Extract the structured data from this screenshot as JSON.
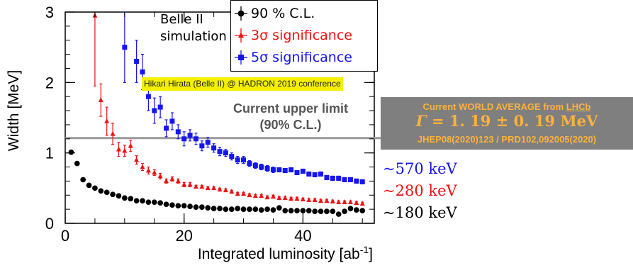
{
  "chart_data": {
    "type": "scatter",
    "xlabel": "Integrated luminosity [ab",
    "xlabel_sup": "-1",
    "xlabel_close": "]",
    "ylabel": "Width [MeV]",
    "xlim": [
      0,
      52
    ],
    "ylim": [
      0,
      3
    ],
    "xticks": [
      "0",
      "20",
      "40"
    ],
    "yticks": [
      "0",
      "1",
      "2",
      "3"
    ],
    "reference_line": {
      "y": 1.21,
      "color": "#999999"
    },
    "series": [
      {
        "name": "90 % C.L.",
        "color": "#000000",
        "marker": "circle",
        "points": [
          [
            1,
            1.01,
            0.02
          ],
          [
            2,
            0.85,
            0.02
          ],
          [
            3,
            0.62,
            0
          ],
          [
            4,
            0.54,
            0
          ],
          [
            5,
            0.5,
            0
          ],
          [
            6,
            0.46,
            0
          ],
          [
            7,
            0.44,
            0
          ],
          [
            8,
            0.41,
            0
          ],
          [
            9,
            0.39,
            0
          ],
          [
            10,
            0.36,
            0
          ],
          [
            11,
            0.35,
            0
          ],
          [
            12,
            0.32,
            0
          ],
          [
            13,
            0.32,
            0
          ],
          [
            14,
            0.3,
            0
          ],
          [
            15,
            0.3,
            0
          ],
          [
            16,
            0.29,
            0
          ],
          [
            17,
            0.27,
            0
          ],
          [
            18,
            0.26,
            0
          ],
          [
            19,
            0.25,
            0
          ],
          [
            20,
            0.25,
            0
          ],
          [
            21,
            0.24,
            0
          ],
          [
            22,
            0.23,
            0
          ],
          [
            23,
            0.23,
            0
          ],
          [
            24,
            0.22,
            0
          ],
          [
            25,
            0.21,
            0
          ],
          [
            26,
            0.21,
            0
          ],
          [
            27,
            0.2,
            0
          ],
          [
            28,
            0.2,
            0
          ],
          [
            29,
            0.21,
            0
          ],
          [
            30,
            0.2,
            0
          ],
          [
            31,
            0.2,
            0
          ],
          [
            32,
            0.2,
            0
          ],
          [
            33,
            0.19,
            0
          ],
          [
            34,
            0.2,
            0
          ],
          [
            35,
            0.19,
            0
          ],
          [
            36,
            0.22,
            0
          ],
          [
            37,
            0.18,
            0
          ],
          [
            38,
            0.18,
            0
          ],
          [
            39,
            0.18,
            0
          ],
          [
            40,
            0.18,
            0
          ],
          [
            41,
            0.18,
            0
          ],
          [
            42,
            0.17,
            0
          ],
          [
            43,
            0.17,
            0
          ],
          [
            44,
            0.17,
            0
          ],
          [
            45,
            0.17,
            0
          ],
          [
            46,
            0.13,
            0
          ],
          [
            47,
            0.17,
            0
          ],
          [
            48,
            0.21,
            0
          ],
          [
            49,
            0.19,
            0
          ],
          [
            50,
            0.18,
            0
          ]
        ]
      },
      {
        "name": "3σ significance",
        "color": "#ee1111",
        "marker": "triangle",
        "points": [
          [
            5,
            2.95,
            1.0
          ],
          [
            6,
            1.75,
            0.23
          ],
          [
            7,
            1.45,
            0.2
          ],
          [
            8,
            1.27,
            0.15
          ],
          [
            9,
            1.05,
            0.1
          ],
          [
            10,
            1.03,
            0.08
          ],
          [
            11,
            1.1,
            0.08
          ],
          [
            12,
            0.9,
            0.06
          ],
          [
            13,
            0.8,
            0.05
          ],
          [
            14,
            0.75,
            0.05
          ],
          [
            15,
            0.72,
            0.04
          ],
          [
            16,
            0.67,
            0.04
          ],
          [
            17,
            0.6,
            0.03
          ],
          [
            18,
            0.63,
            0.03
          ],
          [
            19,
            0.6,
            0.03
          ],
          [
            20,
            0.55,
            0.03
          ],
          [
            21,
            0.55,
            0.03
          ],
          [
            22,
            0.52,
            0.02
          ],
          [
            23,
            0.52,
            0.02
          ],
          [
            24,
            0.5,
            0.02
          ],
          [
            25,
            0.5,
            0.02
          ],
          [
            26,
            0.48,
            0.02
          ],
          [
            27,
            0.47,
            0.02
          ],
          [
            28,
            0.45,
            0.02
          ],
          [
            29,
            0.42,
            0.02
          ],
          [
            30,
            0.42,
            0.02
          ],
          [
            31,
            0.4,
            0.02
          ],
          [
            32,
            0.39,
            0.02
          ],
          [
            33,
            0.39,
            0.02
          ],
          [
            34,
            0.37,
            0.02
          ],
          [
            35,
            0.38,
            0.02
          ],
          [
            36,
            0.36,
            0.02
          ],
          [
            37,
            0.36,
            0.02
          ],
          [
            38,
            0.35,
            0.02
          ],
          [
            39,
            0.35,
            0.02
          ],
          [
            40,
            0.34,
            0.02
          ],
          [
            41,
            0.33,
            0.02
          ],
          [
            42,
            0.33,
            0.02
          ],
          [
            43,
            0.32,
            0.02
          ],
          [
            44,
            0.32,
            0.02
          ],
          [
            45,
            0.31,
            0.02
          ],
          [
            46,
            0.3,
            0.02
          ],
          [
            47,
            0.3,
            0.02
          ],
          [
            48,
            0.3,
            0.02
          ],
          [
            49,
            0.29,
            0.02
          ],
          [
            50,
            0.28,
            0.02
          ]
        ]
      },
      {
        "name": "5σ significance",
        "color": "#1515ee",
        "marker": "square",
        "points": [
          [
            10,
            2.5,
            0.5
          ],
          [
            12,
            2.3,
            0.3
          ],
          [
            13,
            2.15,
            0.25
          ],
          [
            14,
            1.8,
            0.2
          ],
          [
            15,
            1.6,
            0.18
          ],
          [
            16,
            1.65,
            0.15
          ],
          [
            17,
            1.35,
            0.12
          ],
          [
            18,
            1.45,
            0.12
          ],
          [
            19,
            1.3,
            0.1
          ],
          [
            20,
            1.2,
            0.1
          ],
          [
            21,
            1.25,
            0.08
          ],
          [
            22,
            1.2,
            0.08
          ],
          [
            23,
            1.1,
            0.07
          ],
          [
            24,
            1.15,
            0.07
          ],
          [
            25,
            1.07,
            0.06
          ],
          [
            26,
            1.02,
            0.06
          ],
          [
            27,
            1.0,
            0.05
          ],
          [
            28,
            0.95,
            0.05
          ],
          [
            29,
            0.9,
            0.05
          ],
          [
            30,
            0.9,
            0.05
          ],
          [
            31,
            0.85,
            0.04
          ],
          [
            32,
            0.82,
            0.04
          ],
          [
            33,
            0.8,
            0.04
          ],
          [
            34,
            0.78,
            0.04
          ],
          [
            35,
            0.76,
            0.04
          ],
          [
            36,
            0.76,
            0.03
          ],
          [
            37,
            0.75,
            0.03
          ],
          [
            38,
            0.76,
            0.03
          ],
          [
            39,
            0.72,
            0.03
          ],
          [
            40,
            0.74,
            0.03
          ],
          [
            41,
            0.7,
            0.03
          ],
          [
            42,
            0.69,
            0.03
          ],
          [
            43,
            0.7,
            0.03
          ],
          [
            44,
            0.65,
            0.03
          ],
          [
            45,
            0.64,
            0.03
          ],
          [
            46,
            0.64,
            0.03
          ],
          [
            47,
            0.62,
            0.03
          ],
          [
            48,
            0.62,
            0.03
          ],
          [
            49,
            0.6,
            0.03
          ],
          [
            50,
            0.59,
            0.03
          ]
        ]
      }
    ]
  },
  "annotations": {
    "belle_line1": "Belle II",
    "belle_line2": "simulation",
    "credit": "Hikari Hirata (Belle II) @ HADRON 2019 conference",
    "upper_line1": "Current upper limit",
    "upper_line2": "(90% C.L.)"
  },
  "legend": [
    {
      "label": "90 % C.L.",
      "color": "#000000",
      "text_color": "#000000",
      "marker": "circle"
    },
    {
      "label": "3σ significance",
      "color": "#ee1111",
      "text_color": "#ee1111",
      "marker": "triangle"
    },
    {
      "label": "5σ significance",
      "color": "#1515ee",
      "text_color": "#1515ee",
      "marker": "square"
    }
  ],
  "world_average": {
    "line1_pre": "Current WORLD AVERAGE from ",
    "line1_link": "LHCb",
    "symbol": "Γ",
    "value": " = 1. 19 ± 0. 19 MeV",
    "line3": "JHEP08(2020)123 / PRD102,092005(2020)"
  },
  "expected_widths": [
    {
      "text": "~570 keV",
      "color": "#1515ee"
    },
    {
      "text": "~280 keV",
      "color": "#ee1111"
    },
    {
      "text": "~180 keV",
      "color": "#000000"
    }
  ]
}
